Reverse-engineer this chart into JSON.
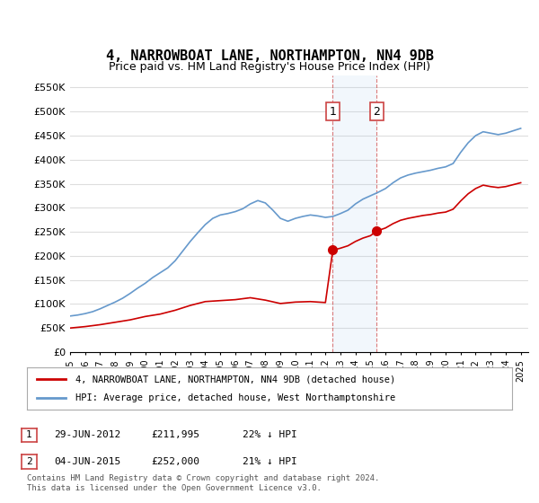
{
  "title": "4, NARROWBOAT LANE, NORTHAMPTON, NN4 9DB",
  "subtitle": "Price paid vs. HM Land Registry's House Price Index (HPI)",
  "hpi_color": "#6699cc",
  "price_color": "#cc0000",
  "background_color": "#ffffff",
  "grid_color": "#dddddd",
  "ylim": [
    0,
    575000
  ],
  "yticks": [
    0,
    50000,
    100000,
    150000,
    200000,
    250000,
    300000,
    350000,
    400000,
    450000,
    500000,
    550000
  ],
  "ytick_labels": [
    "£0",
    "£50K",
    "£100K",
    "£150K",
    "£200K",
    "£250K",
    "£300K",
    "£350K",
    "£400K",
    "£450K",
    "£500K",
    "£550K"
  ],
  "sale1_date": 2012.49,
  "sale1_price": 211995,
  "sale1_label": "1",
  "sale2_date": 2015.42,
  "sale2_price": 252000,
  "sale2_label": "2",
  "legend_line1": "4, NARROWBOAT LANE, NORTHAMPTON, NN4 9DB (detached house)",
  "legend_line2": "HPI: Average price, detached house, West Northamptonshire",
  "table_row1": [
    "1",
    "29-JUN-2012",
    "£211,995",
    "22% ↓ HPI"
  ],
  "table_row2": [
    "2",
    "04-JUN-2015",
    "£252,000",
    "21% ↓ HPI"
  ],
  "footnote": "Contains HM Land Registry data © Crown copyright and database right 2024.\nThis data is licensed under the Open Government Licence v3.0.",
  "xmin": 1995.0,
  "xmax": 2025.5
}
